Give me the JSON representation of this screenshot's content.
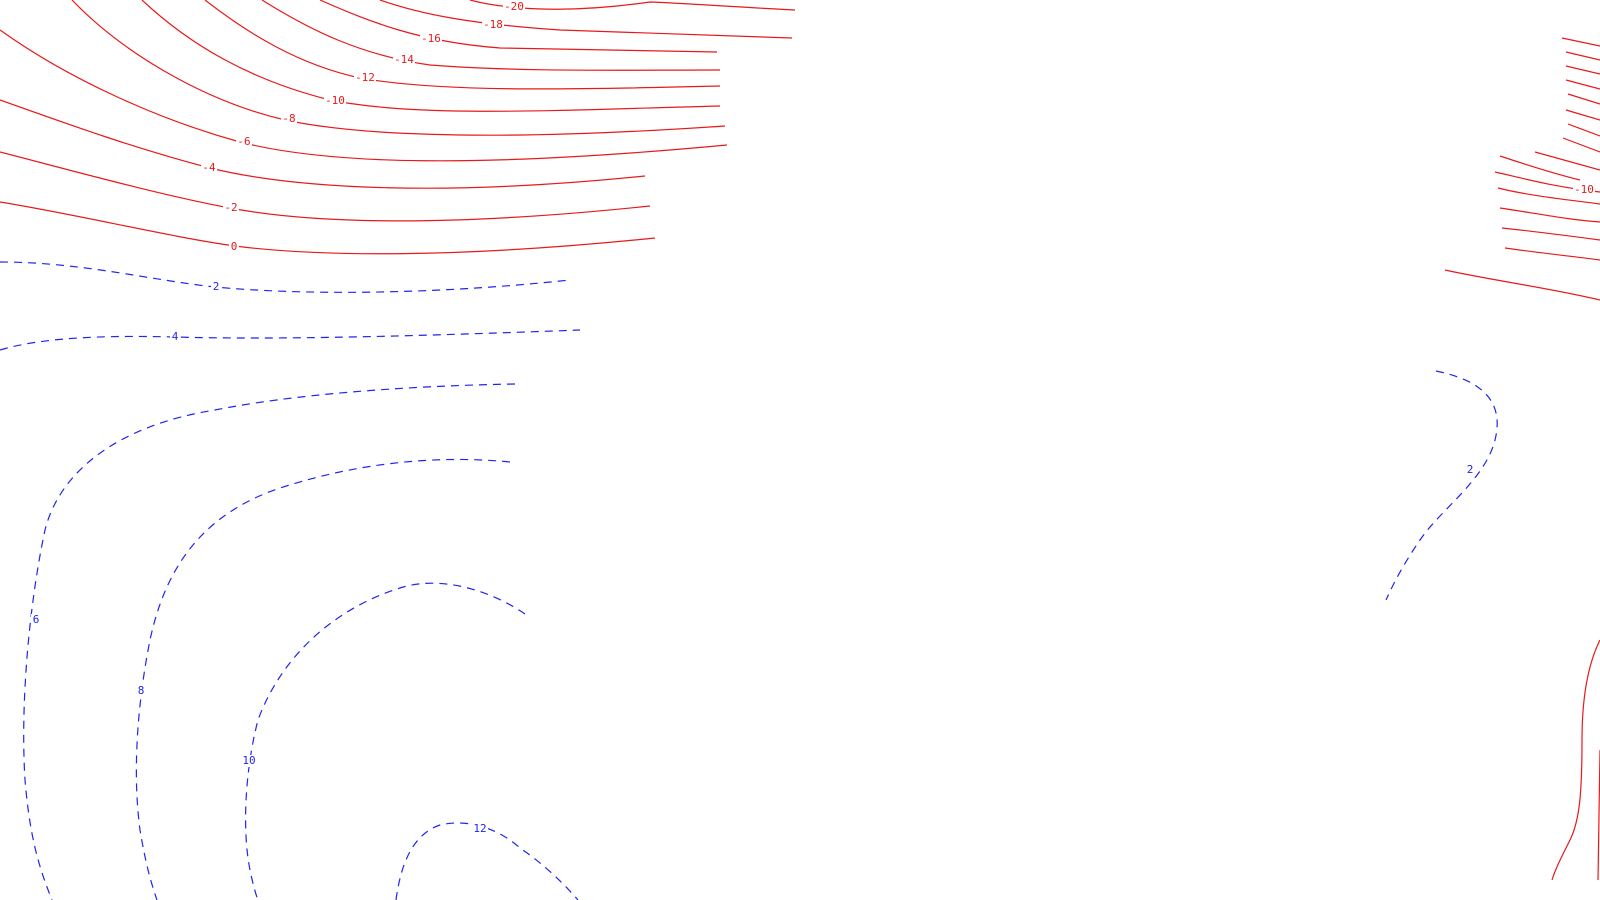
{
  "map": {
    "background": "#ffffff",
    "colors": {
      "negative": "#e8191a",
      "positive": "#1f25f0"
    },
    "style": {
      "negative": "solid",
      "positive": "dashed"
    },
    "contour_labels": [
      "-20",
      "-18",
      "-16",
      "-14",
      "-12",
      "-10",
      "-8",
      "-6",
      "-4",
      "-2",
      "0",
      "2",
      "4",
      "6",
      "8",
      "10",
      "12",
      "-10",
      "2"
    ]
  }
}
